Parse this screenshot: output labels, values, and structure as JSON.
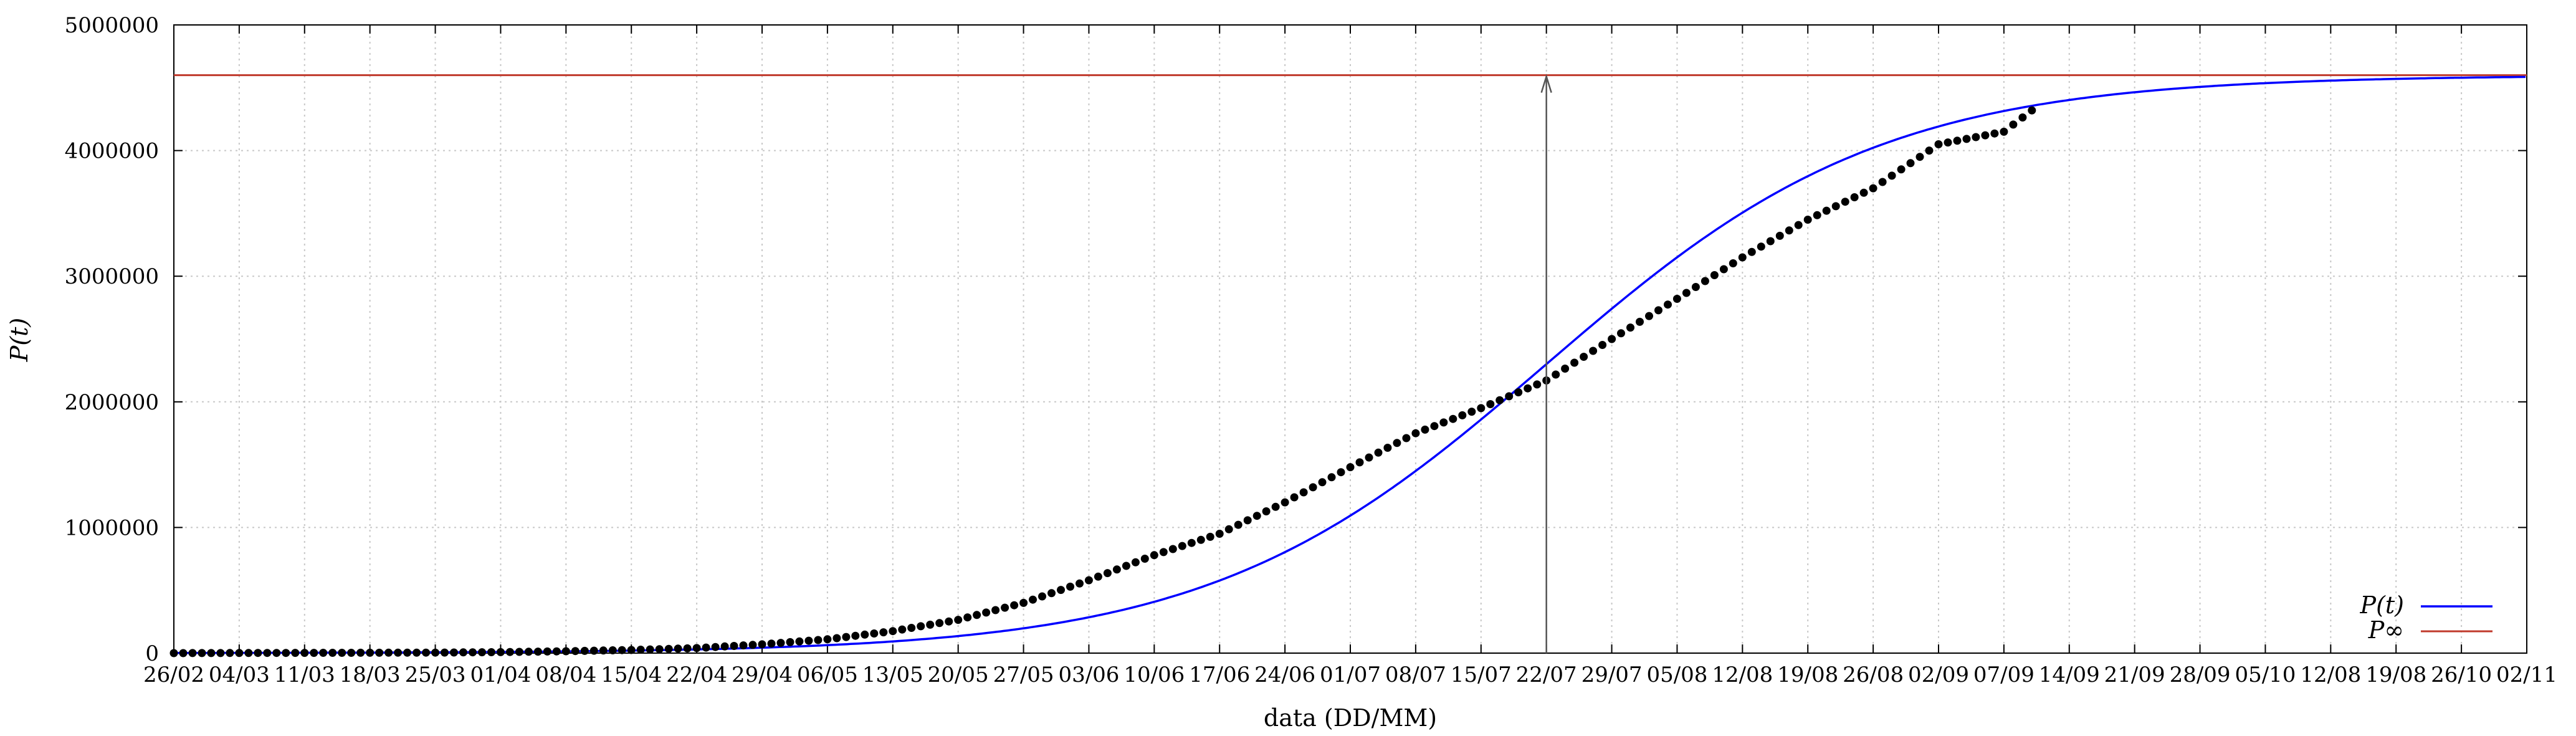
{
  "chart_data": {
    "type": "line",
    "title": "",
    "xlabel": "data (DD/MM)",
    "ylabel": "P(t)",
    "ylim": [
      0,
      5000000
    ],
    "grid": true,
    "legend_position": "bottom-right",
    "x_tick_labels": [
      "26/02",
      "04/03",
      "11/03",
      "18/03",
      "25/03",
      "01/04",
      "08/04",
      "15/04",
      "22/04",
      "29/04",
      "06/05",
      "13/05",
      "20/05",
      "27/05",
      "03/06",
      "10/06",
      "17/06",
      "24/06",
      "01/07",
      "08/07",
      "15/07",
      "22/07",
      "29/07",
      "05/08",
      "12/08",
      "19/08",
      "26/08",
      "02/09",
      "07/09",
      "14/09",
      "21/09",
      "28/09",
      "05/10",
      "12/08",
      "19/08",
      "26/10",
      "02/11"
    ],
    "y_tick_labels": [
      "0",
      "1000000",
      "2000000",
      "3000000",
      "4000000",
      "5000000"
    ],
    "asymptote": {
      "label": "P∞",
      "value": 4600000,
      "color": "#c0392b"
    },
    "fit_curve": {
      "label": "P(t)",
      "color": "#0000ff",
      "P_inf": 4600000,
      "inflection_date": "22/07",
      "shape": "logistic"
    },
    "vertical_marker": {
      "date": "22/07"
    },
    "observed_points": {
      "color": "#000000",
      "x": [
        "26/02",
        "04/03",
        "11/03",
        "18/03",
        "25/03",
        "01/04",
        "08/04",
        "15/04",
        "22/04",
        "29/04",
        "06/05",
        "13/05",
        "20/05",
        "27/05",
        "03/06",
        "10/06",
        "17/06",
        "24/06",
        "01/07",
        "08/07",
        "15/07",
        "22/07",
        "29/07",
        "05/08",
        "12/08",
        "19/08",
        "26/08",
        "02/09",
        "07/09",
        "12/09"
      ],
      "y": [
        0,
        1000,
        2000,
        3000,
        4000,
        8000,
        15000,
        25000,
        40000,
        70000,
        110000,
        175000,
        265000,
        400000,
        580000,
        780000,
        950000,
        1200000,
        1480000,
        1750000,
        1950000,
        2170000,
        2500000,
        2820000,
        3150000,
        3450000,
        3700000,
        4050000,
        4150000,
        4320000
      ]
    }
  }
}
